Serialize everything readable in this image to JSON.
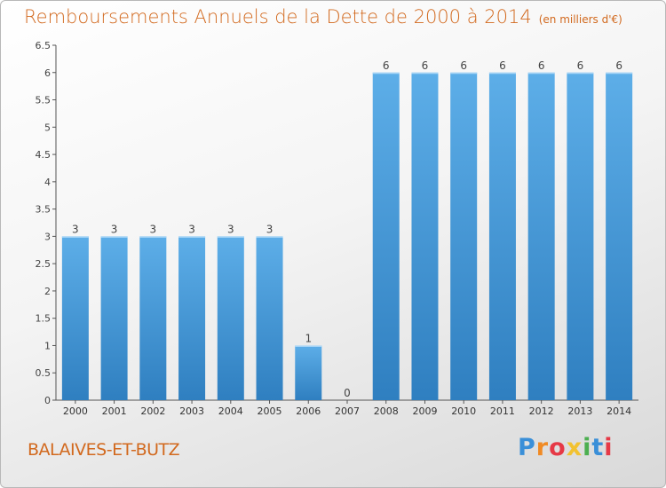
{
  "title": "Remboursements Annuels de la Dette de 2000 à 2014",
  "unit_label": "(en milliers d'€)",
  "commune": "BALAIVES-ET-BUTZ",
  "logo": {
    "text": "Proxiti",
    "letters": [
      {
        "ch": "P",
        "color": "#3a8fd8"
      },
      {
        "ch": "r",
        "color": "#f08a24"
      },
      {
        "ch": "o",
        "color": "#e63946"
      },
      {
        "ch": "x",
        "color": "#f2c230"
      },
      {
        "ch": "i",
        "color": "#4caf50"
      },
      {
        "ch": "t",
        "color": "#3a8fd8"
      },
      {
        "ch": "i",
        "color": "#e63946"
      }
    ]
  },
  "colors": {
    "bar_light": "#5daee8",
    "bar_dark": "#2f7fc0",
    "title": "#d2691e"
  },
  "chart_data": {
    "type": "bar",
    "categories": [
      "2000",
      "2001",
      "2002",
      "2003",
      "2004",
      "2005",
      "2006",
      "2007",
      "2008",
      "2009",
      "2010",
      "2011",
      "2012",
      "2013",
      "2014"
    ],
    "values": [
      3,
      3,
      3,
      3,
      3,
      3,
      1,
      0,
      6,
      6,
      6,
      6,
      6,
      6,
      6
    ],
    "data_labels": [
      "3",
      "3",
      "3",
      "3",
      "3",
      "3",
      "1",
      "0",
      "6",
      "6",
      "6",
      "6",
      "6",
      "6",
      "6"
    ],
    "ylim": [
      0,
      6.5
    ],
    "yticks": [
      0,
      0.5,
      1,
      1.5,
      2,
      2.5,
      3,
      3.5,
      4,
      4.5,
      5,
      5.5,
      6,
      6.5
    ],
    "ytick_labels": [
      "0",
      "0.5",
      "1",
      "1.5",
      "2",
      "2.5",
      "3",
      "3.5",
      "4",
      "4.5",
      "5",
      "5.5",
      "6",
      "6.5"
    ],
    "grid": false,
    "legend": "none"
  }
}
